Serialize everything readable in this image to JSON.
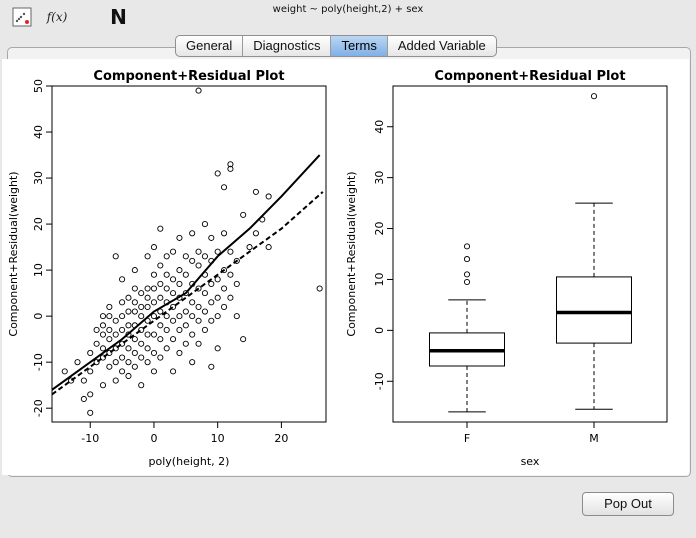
{
  "window": {
    "formula": "weight ~ poly(height,2) + sex"
  },
  "toolbar": {
    "fx_label": "f(x)",
    "logo_letter": "N"
  },
  "tabs": [
    {
      "label": "General",
      "active": false
    },
    {
      "label": "Diagnostics",
      "active": false
    },
    {
      "label": "Terms",
      "active": true
    },
    {
      "label": "Added Variable",
      "active": false
    }
  ],
  "footer": {
    "popout_label": "Pop Out"
  },
  "chart_data": [
    {
      "type": "scatter",
      "title": "Component+Residual Plot",
      "xlabel": "poly(height, 2)",
      "ylabel": "Component+Residual(weight)",
      "xlim": [
        -16,
        27
      ],
      "ylim": [
        -23,
        50
      ],
      "xticks": [
        -10,
        0,
        10,
        20
      ],
      "yticks": [
        -20,
        -10,
        0,
        10,
        20,
        30,
        40,
        50
      ],
      "points": [
        [
          -14,
          -12
        ],
        [
          -13,
          -14
        ],
        [
          -12,
          -10
        ],
        [
          -11,
          -14
        ],
        [
          -11,
          -18
        ],
        [
          -10,
          -21
        ],
        [
          -10,
          -17
        ],
        [
          -10,
          -12
        ],
        [
          -10,
          -8
        ],
        [
          -9,
          -10
        ],
        [
          -9,
          -6
        ],
        [
          -9,
          -3
        ],
        [
          -8,
          -15
        ],
        [
          -8,
          -9
        ],
        [
          -8,
          -4
        ],
        [
          -8,
          -2
        ],
        [
          -8,
          0
        ],
        [
          -8,
          -7
        ],
        [
          -7,
          -11
        ],
        [
          -7,
          -8
        ],
        [
          -7,
          -5
        ],
        [
          -7,
          -3
        ],
        [
          -7,
          0
        ],
        [
          -7,
          2
        ],
        [
          -6,
          -14
        ],
        [
          -6,
          -10
        ],
        [
          -6,
          -7
        ],
        [
          -6,
          -4
        ],
        [
          -6,
          -1
        ],
        [
          -6,
          13
        ],
        [
          -5,
          -12
        ],
        [
          -5,
          -9
        ],
        [
          -5,
          -6
        ],
        [
          -5,
          -3
        ],
        [
          -5,
          0
        ],
        [
          -5,
          3
        ],
        [
          -5,
          8
        ],
        [
          -4,
          -13
        ],
        [
          -4,
          -10
        ],
        [
          -4,
          -7
        ],
        [
          -4,
          -4
        ],
        [
          -4,
          -2
        ],
        [
          -4,
          1
        ],
        [
          -4,
          4
        ],
        [
          -3,
          -11
        ],
        [
          -3,
          -8
        ],
        [
          -3,
          -5
        ],
        [
          -3,
          -2
        ],
        [
          -3,
          1
        ],
        [
          -3,
          3
        ],
        [
          -3,
          6
        ],
        [
          -3,
          10
        ],
        [
          -2,
          -15
        ],
        [
          -2,
          -9
        ],
        [
          -2,
          -6
        ],
        [
          -2,
          -3
        ],
        [
          -2,
          0
        ],
        [
          -2,
          2
        ],
        [
          -2,
          5
        ],
        [
          -1,
          -10
        ],
        [
          -1,
          -7
        ],
        [
          -1,
          -4
        ],
        [
          -1,
          -1
        ],
        [
          -1,
          2
        ],
        [
          -1,
          4
        ],
        [
          -1,
          6
        ],
        [
          -1,
          13
        ],
        [
          0,
          -12
        ],
        [
          0,
          -8
        ],
        [
          0,
          -4
        ],
        [
          0,
          0
        ],
        [
          0,
          3
        ],
        [
          0,
          6
        ],
        [
          0,
          9
        ],
        [
          0,
          15
        ],
        [
          1,
          -9
        ],
        [
          1,
          -5
        ],
        [
          1,
          -2
        ],
        [
          1,
          1
        ],
        [
          1,
          4
        ],
        [
          1,
          7
        ],
        [
          1,
          11
        ],
        [
          1,
          19
        ],
        [
          2,
          -7
        ],
        [
          2,
          -3
        ],
        [
          2,
          0
        ],
        [
          2,
          3
        ],
        [
          2,
          6
        ],
        [
          2,
          9
        ],
        [
          2,
          13
        ],
        [
          3,
          -12
        ],
        [
          3,
          -5
        ],
        [
          3,
          -1
        ],
        [
          3,
          2
        ],
        [
          3,
          5
        ],
        [
          3,
          8
        ],
        [
          3,
          14
        ],
        [
          4,
          -8
        ],
        [
          4,
          -3
        ],
        [
          4,
          0
        ],
        [
          4,
          4
        ],
        [
          4,
          7
        ],
        [
          4,
          10
        ],
        [
          4,
          17
        ],
        [
          5,
          -6
        ],
        [
          5,
          -2
        ],
        [
          5,
          1
        ],
        [
          5,
          5
        ],
        [
          5,
          9
        ],
        [
          5,
          13
        ],
        [
          6,
          -10
        ],
        [
          6,
          -4
        ],
        [
          6,
          0
        ],
        [
          6,
          3
        ],
        [
          6,
          7
        ],
        [
          6,
          12
        ],
        [
          6,
          18
        ],
        [
          7,
          -6
        ],
        [
          7,
          -1
        ],
        [
          7,
          2
        ],
        [
          7,
          6
        ],
        [
          7,
          11
        ],
        [
          7,
          14
        ],
        [
          7,
          49
        ],
        [
          8,
          -3
        ],
        [
          8,
          1
        ],
        [
          8,
          5
        ],
        [
          8,
          9
        ],
        [
          8,
          13
        ],
        [
          8,
          20
        ],
        [
          9,
          -11
        ],
        [
          9,
          -1
        ],
        [
          9,
          3
        ],
        [
          9,
          7
        ],
        [
          9,
          12
        ],
        [
          9,
          17
        ],
        [
          10,
          -7
        ],
        [
          10,
          0
        ],
        [
          10,
          4
        ],
        [
          10,
          8
        ],
        [
          10,
          14
        ],
        [
          10,
          31
        ],
        [
          11,
          2
        ],
        [
          11,
          6
        ],
        [
          11,
          10
        ],
        [
          11,
          18
        ],
        [
          11,
          28
        ],
        [
          12,
          4
        ],
        [
          12,
          9
        ],
        [
          12,
          14
        ],
        [
          12,
          32
        ],
        [
          12,
          33
        ],
        [
          13,
          0
        ],
        [
          13,
          7
        ],
        [
          13,
          12
        ],
        [
          14,
          -5
        ],
        [
          14,
          22
        ],
        [
          15,
          15
        ],
        [
          16,
          18
        ],
        [
          16,
          27
        ],
        [
          17,
          21
        ],
        [
          18,
          15
        ],
        [
          18,
          26
        ],
        [
          26,
          6
        ]
      ],
      "series": [
        {
          "x": [
            -16,
            -10,
            -5,
            0,
            5,
            10,
            15,
            20,
            26
          ],
          "y": [
            -16,
            -10,
            -5,
            1,
            5,
            13,
            19,
            26,
            35
          ]
        },
        {
          "x": [
            -16,
            -10,
            -5,
            0,
            5,
            10,
            15,
            20,
            26.5
          ],
          "y": [
            -17,
            -11,
            -6,
            -1,
            4,
            9,
            14,
            19,
            27
          ]
        }
      ]
    },
    {
      "type": "box",
      "title": "Component+Residual Plot",
      "xlabel": "sex",
      "ylabel": "Component+Residual(weight)",
      "categories": [
        "F",
        "M"
      ],
      "ylim": [
        -18,
        48
      ],
      "yticks": [
        -10,
        0,
        10,
        20,
        30,
        40
      ],
      "boxes": [
        {
          "whisker_low": -16,
          "q1": -7,
          "median": -4,
          "q3": -0.5,
          "whisker_high": 6,
          "outliers": [
            9.5,
            11,
            14,
            16.5
          ]
        },
        {
          "whisker_low": -15.5,
          "q1": -2.5,
          "median": 3.5,
          "q3": 10.5,
          "whisker_high": 25,
          "outliers": [
            46
          ]
        }
      ]
    }
  ]
}
